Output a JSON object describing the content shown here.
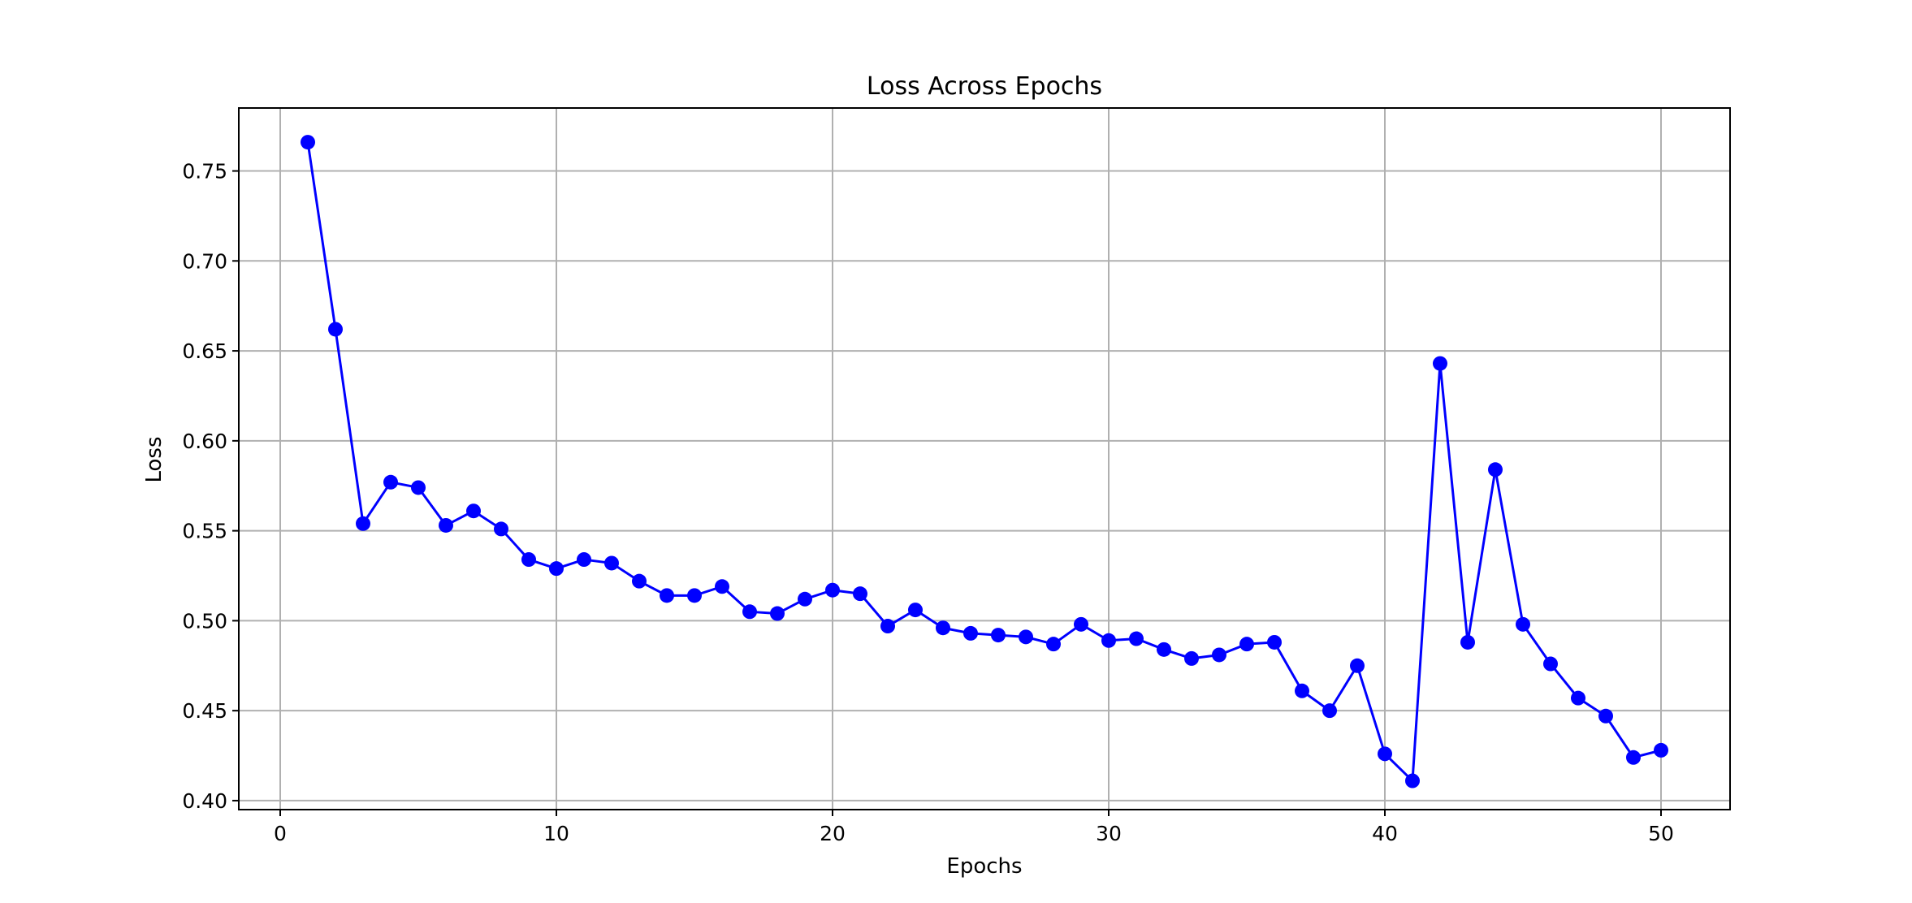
{
  "chart_data": {
    "type": "line",
    "title": "Loss Across Epochs",
    "xlabel": "Epochs",
    "ylabel": "Loss",
    "xlim": [
      -1.5,
      52.5
    ],
    "ylim": [
      0.395,
      0.785
    ],
    "x_ticks": [
      0,
      10,
      20,
      30,
      40,
      50
    ],
    "y_ticks": [
      0.4,
      0.45,
      0.5,
      0.55,
      0.6,
      0.65,
      0.7,
      0.75
    ],
    "y_tick_labels": [
      "0.40",
      "0.45",
      "0.50",
      "0.55",
      "0.60",
      "0.65",
      "0.70",
      "0.75"
    ],
    "grid": true,
    "series": [
      {
        "color": "#0000ff",
        "marker": "circle",
        "x": [
          1,
          2,
          3,
          4,
          5,
          6,
          7,
          8,
          9,
          10,
          11,
          12,
          13,
          14,
          15,
          16,
          17,
          18,
          19,
          20,
          21,
          22,
          23,
          24,
          25,
          26,
          27,
          28,
          29,
          30,
          31,
          32,
          33,
          34,
          35,
          36,
          37,
          38,
          39,
          40,
          41,
          42,
          43,
          44,
          45,
          46,
          47,
          48,
          49,
          50
        ],
        "y": [
          0.766,
          0.662,
          0.554,
          0.577,
          0.574,
          0.553,
          0.561,
          0.551,
          0.534,
          0.529,
          0.534,
          0.532,
          0.522,
          0.514,
          0.514,
          0.519,
          0.505,
          0.504,
          0.512,
          0.517,
          0.515,
          0.497,
          0.506,
          0.496,
          0.493,
          0.492,
          0.491,
          0.487,
          0.498,
          0.489,
          0.49,
          0.484,
          0.479,
          0.481,
          0.487,
          0.488,
          0.461,
          0.45,
          0.475,
          0.426,
          0.411,
          0.643,
          0.488,
          0.584,
          0.498,
          0.476,
          0.457,
          0.447,
          0.424,
          0.428
        ]
      }
    ]
  }
}
